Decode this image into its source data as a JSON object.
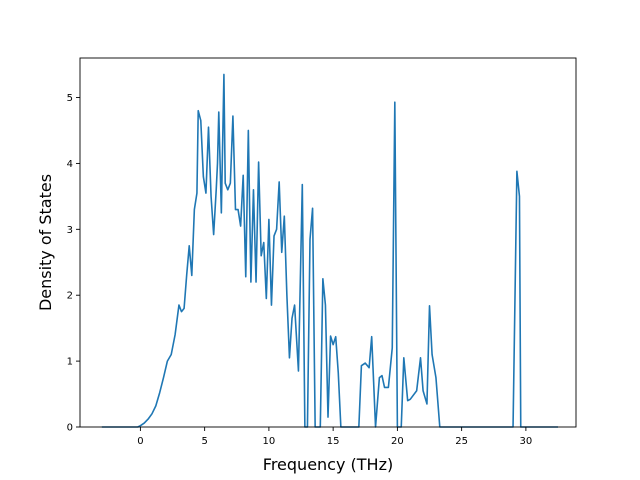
{
  "chart_data": {
    "type": "line",
    "title": "",
    "xlabel": "Frequency (THz)",
    "ylabel": "Density of States",
    "xlim": [
      -4.7,
      33.9
    ],
    "ylim": [
      0,
      5.6
    ],
    "xticks": [
      0,
      5,
      10,
      15,
      20,
      25,
      30
    ],
    "yticks": [
      0,
      1,
      2,
      3,
      4,
      5
    ],
    "grid": false,
    "legend": "none",
    "color": "#1f77b4",
    "series": [
      {
        "x": [
          -3.0,
          -2.0,
          -1.0,
          -0.2,
          0.0,
          0.3,
          0.6,
          0.9,
          1.2,
          1.5,
          1.8,
          2.1,
          2.4,
          2.7,
          3.0,
          3.2,
          3.4,
          3.6,
          3.8,
          4.0,
          4.2,
          4.4,
          4.5,
          4.7,
          4.9,
          5.1,
          5.3,
          5.5,
          5.7,
          5.9,
          6.0,
          6.1,
          6.3,
          6.5,
          6.6,
          6.8,
          7.0,
          7.2,
          7.4,
          7.6,
          7.8,
          8.0,
          8.2,
          8.4,
          8.6,
          8.8,
          9.0,
          9.2,
          9.4,
          9.6,
          9.8,
          10.0,
          10.2,
          10.4,
          10.6,
          10.8,
          11.0,
          11.2,
          11.4,
          11.6,
          11.8,
          12.0,
          12.3,
          12.6,
          12.8,
          13.0,
          13.2,
          13.4,
          13.6,
          13.8,
          14.0,
          14.2,
          14.4,
          14.6,
          14.8,
          15.0,
          15.2,
          15.4,
          15.6,
          15.8,
          16.0,
          16.5,
          17.0,
          17.2,
          17.5,
          17.8,
          18.0,
          18.3,
          18.6,
          18.8,
          19.0,
          19.3,
          19.6,
          19.8,
          20.0,
          20.3,
          20.5,
          20.8,
          21.0,
          21.5,
          21.8,
          22.0,
          22.3,
          22.5,
          22.7,
          23.0,
          23.3,
          24.0,
          26.0,
          28.0,
          29.0,
          29.3,
          29.5,
          29.6,
          29.8,
          30.5,
          32.5
        ],
        "y": [
          0,
          0,
          0,
          0,
          0.02,
          0.06,
          0.12,
          0.2,
          0.32,
          0.52,
          0.75,
          1.0,
          1.1,
          1.4,
          1.85,
          1.75,
          1.8,
          2.3,
          2.75,
          2.3,
          3.3,
          3.55,
          4.8,
          4.65,
          3.8,
          3.55,
          4.55,
          3.5,
          2.92,
          3.6,
          4.0,
          4.78,
          3.25,
          5.35,
          3.7,
          3.6,
          3.7,
          4.72,
          3.3,
          3.3,
          3.05,
          3.82,
          2.28,
          4.5,
          2.2,
          3.6,
          2.2,
          4.02,
          2.6,
          2.8,
          1.95,
          3.15,
          1.85,
          2.9,
          3.0,
          3.72,
          2.65,
          3.2,
          2.0,
          1.05,
          1.65,
          1.85,
          0.85,
          3.68,
          0.0,
          0.0,
          2.85,
          3.32,
          0.0,
          0.0,
          0.0,
          2.25,
          1.85,
          0.15,
          1.38,
          1.25,
          1.37,
          0.82,
          0.0,
          0.0,
          0.0,
          0.0,
          0.0,
          0.93,
          0.97,
          0.9,
          1.37,
          0.0,
          0.75,
          0.78,
          0.6,
          0.6,
          1.2,
          4.93,
          0.0,
          0.0,
          1.05,
          0.4,
          0.42,
          0.55,
          1.05,
          0.55,
          0.35,
          1.84,
          1.1,
          0.75,
          0.0,
          0.0,
          0.0,
          0.0,
          0.0,
          3.88,
          3.5,
          0.0,
          0.0,
          0.0,
          0.0
        ]
      }
    ]
  }
}
